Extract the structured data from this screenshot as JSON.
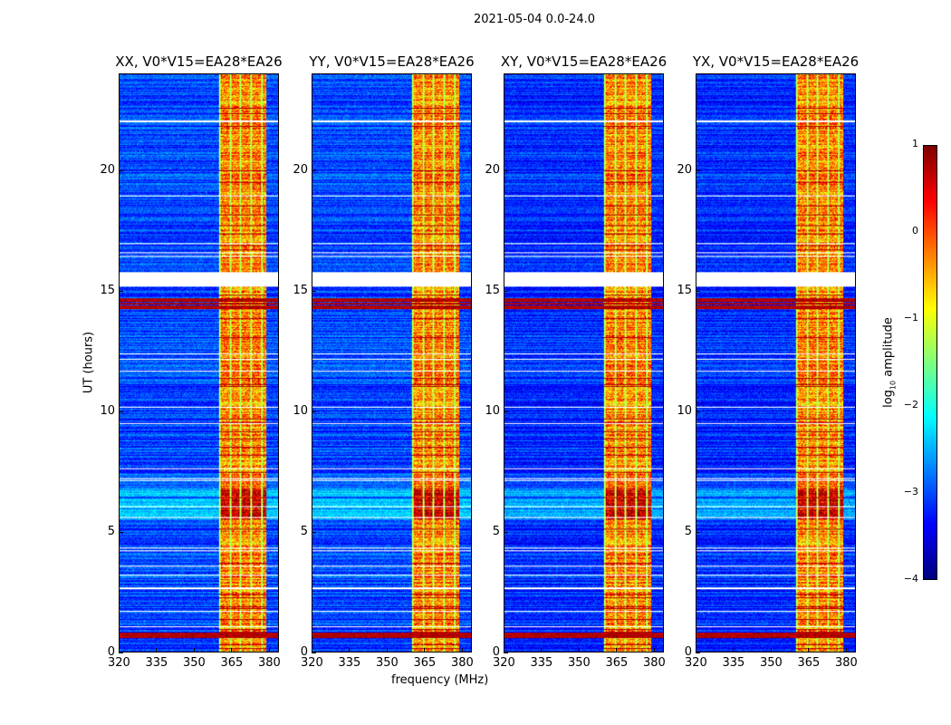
{
  "chart_data": {
    "type": "heatmap",
    "title": "2021-05-04 0.0-24.0",
    "xlabel": "frequency (MHz)",
    "ylabel": "UT (hours)",
    "xlim": [
      320,
      384
    ],
    "ylim": [
      0,
      24
    ],
    "xticks": [
      "320",
      "335",
      "350",
      "365",
      "380"
    ],
    "xtick_values": [
      320,
      335,
      350,
      365,
      380
    ],
    "yticks": [
      "0",
      "5",
      "10",
      "15",
      "20"
    ],
    "ytick_values": [
      0,
      5,
      10,
      15,
      20
    ],
    "colormap": "jet",
    "panels": [
      {
        "title": "XX, V0*V15=EA28*EA26"
      },
      {
        "title": "YY, V0*V15=EA28*EA26"
      },
      {
        "title": "XY, V0*V15=EA28*EA26"
      },
      {
        "title": "YX, V0*V15=EA28*EA26"
      }
    ],
    "high_amplitude_band_mhz": [
      360,
      379
    ],
    "data_gap_hours": [
      15.2,
      15.8
    ],
    "strong_rfi_hours": [
      [
        14.2,
        14.7
      ],
      [
        0.6,
        0.9
      ]
    ],
    "colorbar": {
      "label_prefix": "log",
      "label_sub": "10",
      "label_suffix": " amplitude",
      "range": [
        -4,
        1
      ],
      "ticks": [
        "1",
        "0",
        "−1",
        "−2",
        "−3",
        "−4"
      ],
      "tick_values": [
        1,
        0,
        -1,
        -2,
        -3,
        -4
      ]
    }
  }
}
